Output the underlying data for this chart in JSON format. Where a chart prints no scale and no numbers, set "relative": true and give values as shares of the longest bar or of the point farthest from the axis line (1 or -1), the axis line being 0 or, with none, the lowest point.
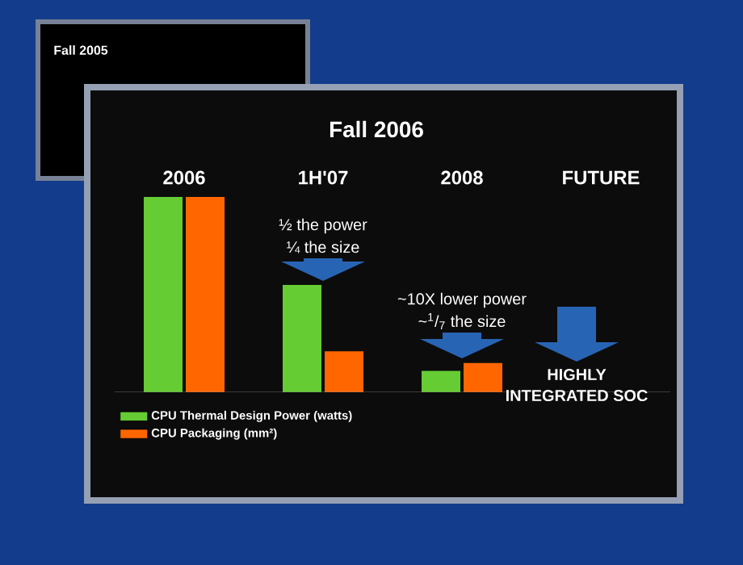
{
  "chart_data": {
    "type": "bar",
    "title": "Fall 2006",
    "relative": true,
    "legend": "bottom left",
    "grid": false,
    "categories": [
      "2006",
      "1H'07",
      "2008",
      "FUTURE"
    ],
    "series": [
      {
        "name": "CPU Thermal Design Power (watts)",
        "color": "#66cc33",
        "values": [
          1,
          0.55,
          0.11,
          null
        ]
      },
      {
        "name": "CPU Packaging (mm²)",
        "color": "#ff6600",
        "values": [
          1,
          0.21,
          0.15,
          null
        ]
      }
    ],
    "annotations": [
      "½ the power",
      "¼ the size",
      "~10X lower power",
      "~$^{1}$/$_{7}$ the size",
      "HIGHLY",
      "INTEGRATED SOC",
      "Fall 2005"
    ]
  }
}
